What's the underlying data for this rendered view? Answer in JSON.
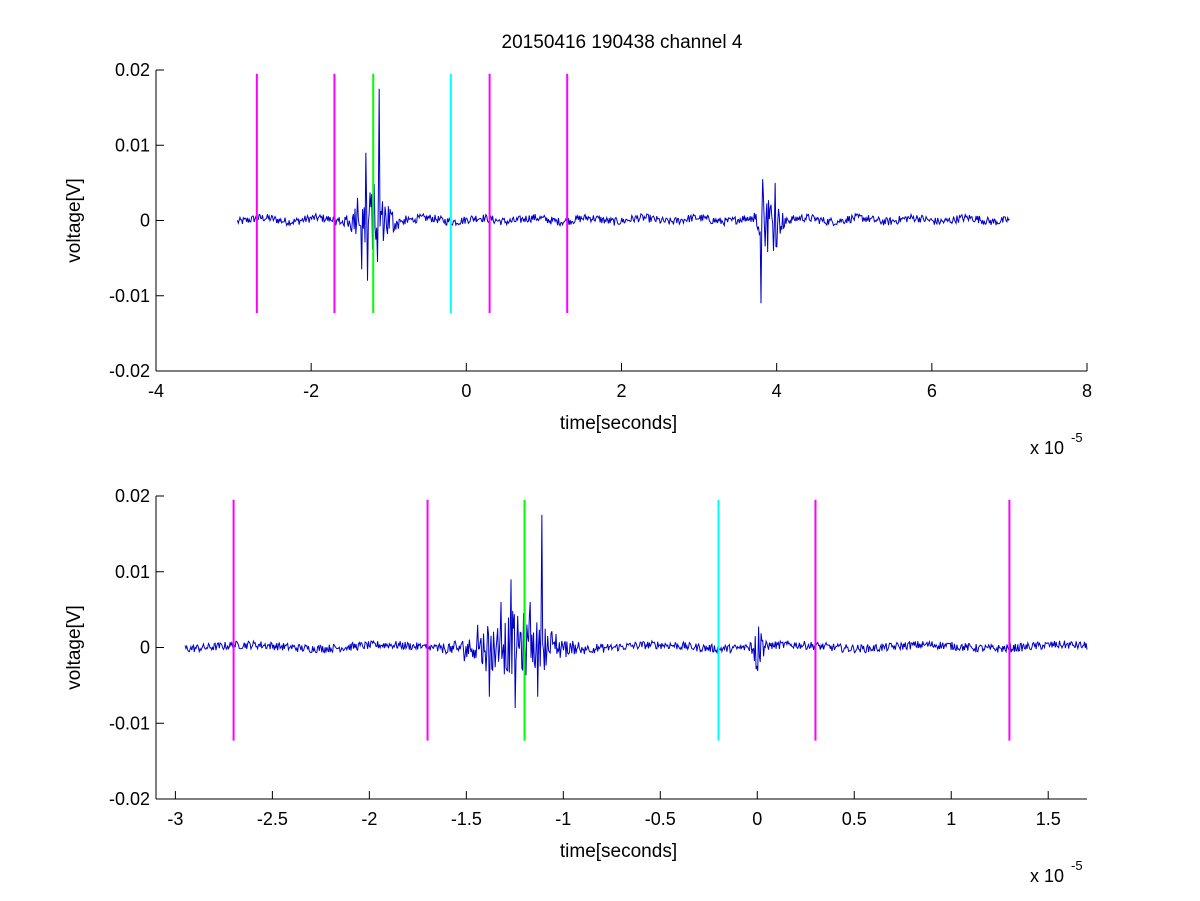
{
  "figure_title": "20150416 190438 channel 4",
  "colors": {
    "signal": "#0000c8",
    "marker_magenta": "#ff00ff",
    "marker_green": "#00ff00",
    "marker_cyan": "#00ffff",
    "axes": "#000000",
    "background": "#ffffff"
  },
  "chart_data": [
    {
      "type": "line",
      "title": "20150416 190438 channel 4",
      "xlabel": "time[seconds]",
      "ylabel": "voltage[V]",
      "x_exponent_label": "x 10",
      "x_exponent": "-5",
      "xlim": [
        -4,
        8
      ],
      "ylim": [
        -0.02,
        0.02
      ],
      "x_ticks": [
        -4,
        -2,
        0,
        2,
        4,
        6,
        8
      ],
      "x_tick_labels": [
        "-4",
        "-2",
        "0",
        "2",
        "4",
        "6",
        "8"
      ],
      "y_ticks": [
        -0.02,
        -0.01,
        0,
        0.01,
        0.02
      ],
      "y_tick_labels": [
        "-0.02",
        "-0.01",
        "0",
        "0.01",
        "0.02"
      ],
      "grid": false,
      "signal_x_range": [
        -2.95,
        7.0
      ],
      "bursts": [
        {
          "center": -1.2,
          "width": 0.45,
          "peaks": [
            {
              "x": -1.4,
              "y": 0.003
            },
            {
              "x": -1.35,
              "y": -0.0065
            },
            {
              "x": -1.29,
              "y": 0.009
            },
            {
              "x": -1.27,
              "y": -0.008
            },
            {
              "x": -1.12,
              "y": 0.0175
            },
            {
              "x": -1.15,
              "y": -0.0055
            }
          ]
        },
        {
          "center": 3.9,
          "width": 0.25,
          "peaks": [
            {
              "x": 3.8,
              "y": -0.011
            },
            {
              "x": 3.82,
              "y": 0.0055
            },
            {
              "x": 3.98,
              "y": 0.005
            },
            {
              "x": 4.0,
              "y": -0.0035
            }
          ]
        }
      ],
      "markers": [
        {
          "x": -2.7,
          "color": "magenta"
        },
        {
          "x": -1.7,
          "color": "magenta"
        },
        {
          "x": -1.2,
          "color": "green"
        },
        {
          "x": -0.2,
          "color": "cyan"
        },
        {
          "x": 0.3,
          "color": "magenta"
        },
        {
          "x": 1.3,
          "color": "magenta"
        }
      ],
      "marker_range": [
        -0.0123,
        0.0195
      ]
    },
    {
      "type": "line",
      "title": "",
      "xlabel": "time[seconds]",
      "ylabel": "voltage[V]",
      "x_exponent_label": "x 10",
      "x_exponent": "-5",
      "xlim": [
        -3.1,
        1.7
      ],
      "ylim": [
        -0.02,
        0.02
      ],
      "x_ticks": [
        -3,
        -2.5,
        -2,
        -1.5,
        -1,
        -0.5,
        0,
        0.5,
        1,
        1.5
      ],
      "x_tick_labels": [
        "-3",
        "-2.5",
        "-2",
        "-1.5",
        "-1",
        "-0.5",
        "0",
        "0.5",
        "1",
        "1.5"
      ],
      "y_ticks": [
        -0.02,
        -0.01,
        0,
        0.01,
        0.02
      ],
      "y_tick_labels": [
        "-0.02",
        "-0.01",
        "0",
        "0.01",
        "0.02"
      ],
      "grid": false,
      "signal_x_range": [
        -2.95,
        1.7
      ],
      "bursts": [
        {
          "center": -1.25,
          "width": 0.4,
          "peaks": [
            {
              "x": -1.44,
              "y": 0.003
            },
            {
              "x": -1.38,
              "y": -0.0065
            },
            {
              "x": -1.32,
              "y": 0.006
            },
            {
              "x": -1.27,
              "y": 0.009
            },
            {
              "x": -1.25,
              "y": -0.008
            },
            {
              "x": -1.17,
              "y": 0.006
            },
            {
              "x": -1.11,
              "y": 0.0175
            },
            {
              "x": -1.13,
              "y": -0.0065
            }
          ]
        },
        {
          "center": 0.0,
          "width": 0.05,
          "peaks": [
            {
              "x": -0.01,
              "y": 0.0015
            },
            {
              "x": 0.01,
              "y": -0.0012
            }
          ]
        }
      ],
      "markers": [
        {
          "x": -2.7,
          "color": "magenta"
        },
        {
          "x": -1.7,
          "color": "magenta"
        },
        {
          "x": -1.2,
          "color": "green"
        },
        {
          "x": -0.2,
          "color": "cyan"
        },
        {
          "x": 0.3,
          "color": "magenta"
        },
        {
          "x": 1.3,
          "color": "magenta"
        }
      ],
      "marker_range": [
        -0.0123,
        0.0195
      ]
    }
  ]
}
